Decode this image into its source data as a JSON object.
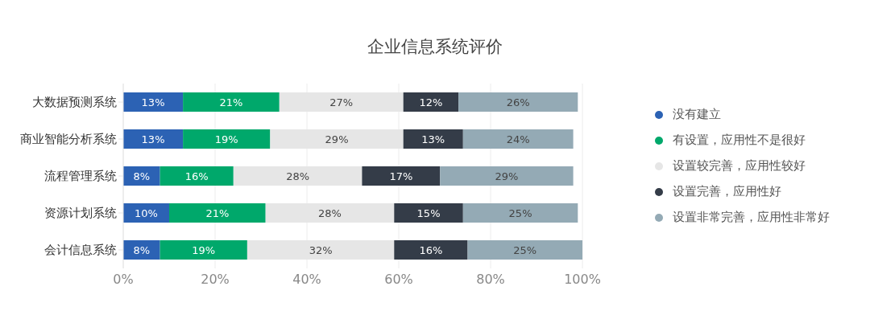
{
  "chart_data": {
    "type": "bar",
    "orientation": "horizontal",
    "stacked": true,
    "title": "企业信息系统评价",
    "categories": [
      "大数据预测系统",
      "商业智能分析系统",
      "流程管理系统",
      "资源计划系统",
      "会计信息系统"
    ],
    "series": [
      {
        "name": "没有建立",
        "color": "#2c62b4",
        "values": [
          13,
          13,
          8,
          10,
          8
        ],
        "value_labels": [
          "13%",
          "13%",
          "8%",
          "10%",
          "8%"
        ]
      },
      {
        "name": "有设置，应用性不是很好",
        "color": "#00a86b",
        "values": [
          21,
          19,
          16,
          21,
          19
        ],
        "value_labels": [
          "21%",
          "19%",
          "16%",
          "21%",
          "19%"
        ]
      },
      {
        "name": "设置较完善，应用性较好",
        "color": "#e6e6e6",
        "values": [
          27,
          29,
          28,
          28,
          32
        ],
        "value_labels": [
          "27%",
          "29%",
          "28%",
          "28%",
          "32%"
        ]
      },
      {
        "name": "设置完善，应用性好",
        "color": "#343c48",
        "values": [
          12,
          13,
          17,
          15,
          16
        ],
        "value_labels": [
          "12%",
          "13%",
          "17%",
          "15%",
          "16%"
        ]
      },
      {
        "name": "设置非常完善，应用性非常好",
        "color": "#94aab5",
        "values": [
          26,
          24,
          29,
          25,
          25
        ],
        "value_labels": [
          "26%",
          "24%",
          "29%",
          "25%",
          "25%"
        ]
      }
    ],
    "xlim": [
      0,
      100
    ],
    "xticks": [
      {
        "value": 0,
        "label": "0%"
      },
      {
        "value": 20,
        "label": "20%"
      },
      {
        "value": 40,
        "label": "40%"
      },
      {
        "value": 60,
        "label": "60%"
      },
      {
        "value": 80,
        "label": "80%"
      },
      {
        "value": 100,
        "label": "100%"
      }
    ],
    "grid": "x",
    "legend": "right"
  }
}
